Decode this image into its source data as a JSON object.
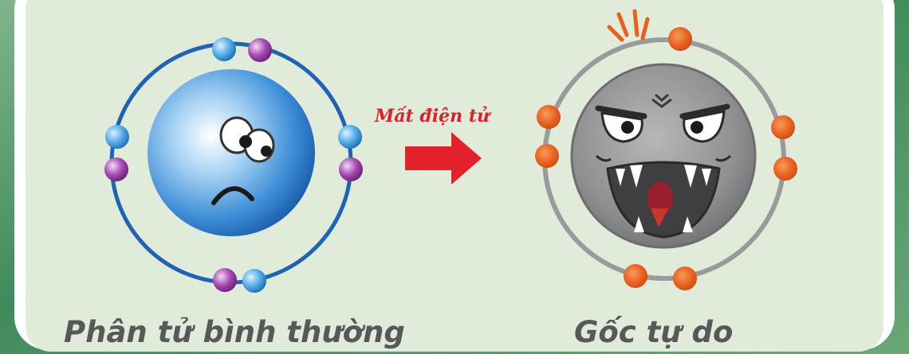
{
  "labels": {
    "normal_molecule": "Phân tử bình thường",
    "free_radical": "Gốc tự do",
    "arrow_caption": "Mất điện tử"
  },
  "colors": {
    "normal_orbit": "#1f63b5",
    "radical_orbit": "#9a9a9c",
    "electron_blue": "#3d9be0",
    "electron_purple": "#9b3fa6",
    "electron_orange": "#e8601e",
    "arrow": "#e3212a",
    "label_text": "#58585a",
    "panel_background": "#e0ebd9"
  },
  "icons": {
    "normal": "sad-blue-atom-icon",
    "radical": "angry-grey-radical-icon",
    "transition": "arrow-right-icon"
  }
}
